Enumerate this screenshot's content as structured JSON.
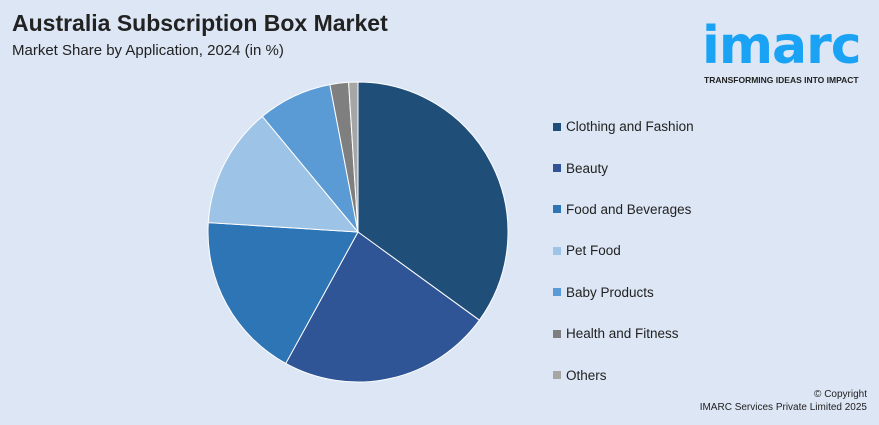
{
  "header": {
    "title": "Australia Subscription Box Market",
    "subtitle": "Market Share by Application, 2024 (in %)"
  },
  "logo": {
    "word": "imarc",
    "tagline": "TRANSFORMING IDEAS INTO IMPACT",
    "color": "#1aa3f5"
  },
  "chart_data": {
    "type": "pie",
    "title": "Australia Subscription Box Market",
    "subtitle": "Market Share by Application, 2024 (in %)",
    "categories": [
      "Clothing and Fashion",
      "Beauty",
      "Food and Beverages",
      "Pet Food",
      "Baby Products",
      "Health and Fitness",
      "Others"
    ],
    "values": [
      35,
      23,
      18,
      13,
      8,
      2,
      1
    ],
    "colors": [
      "#1f4e79",
      "#2f5597",
      "#2e75b6",
      "#9dc3e6",
      "#5b9bd5",
      "#7f7f7f",
      "#a6a6a6"
    ],
    "start": "12 o'clock, clockwise",
    "legend": "right"
  },
  "footer": {
    "copyright": "© Copyright",
    "company": "IMARC Services Private Limited 2025"
  }
}
